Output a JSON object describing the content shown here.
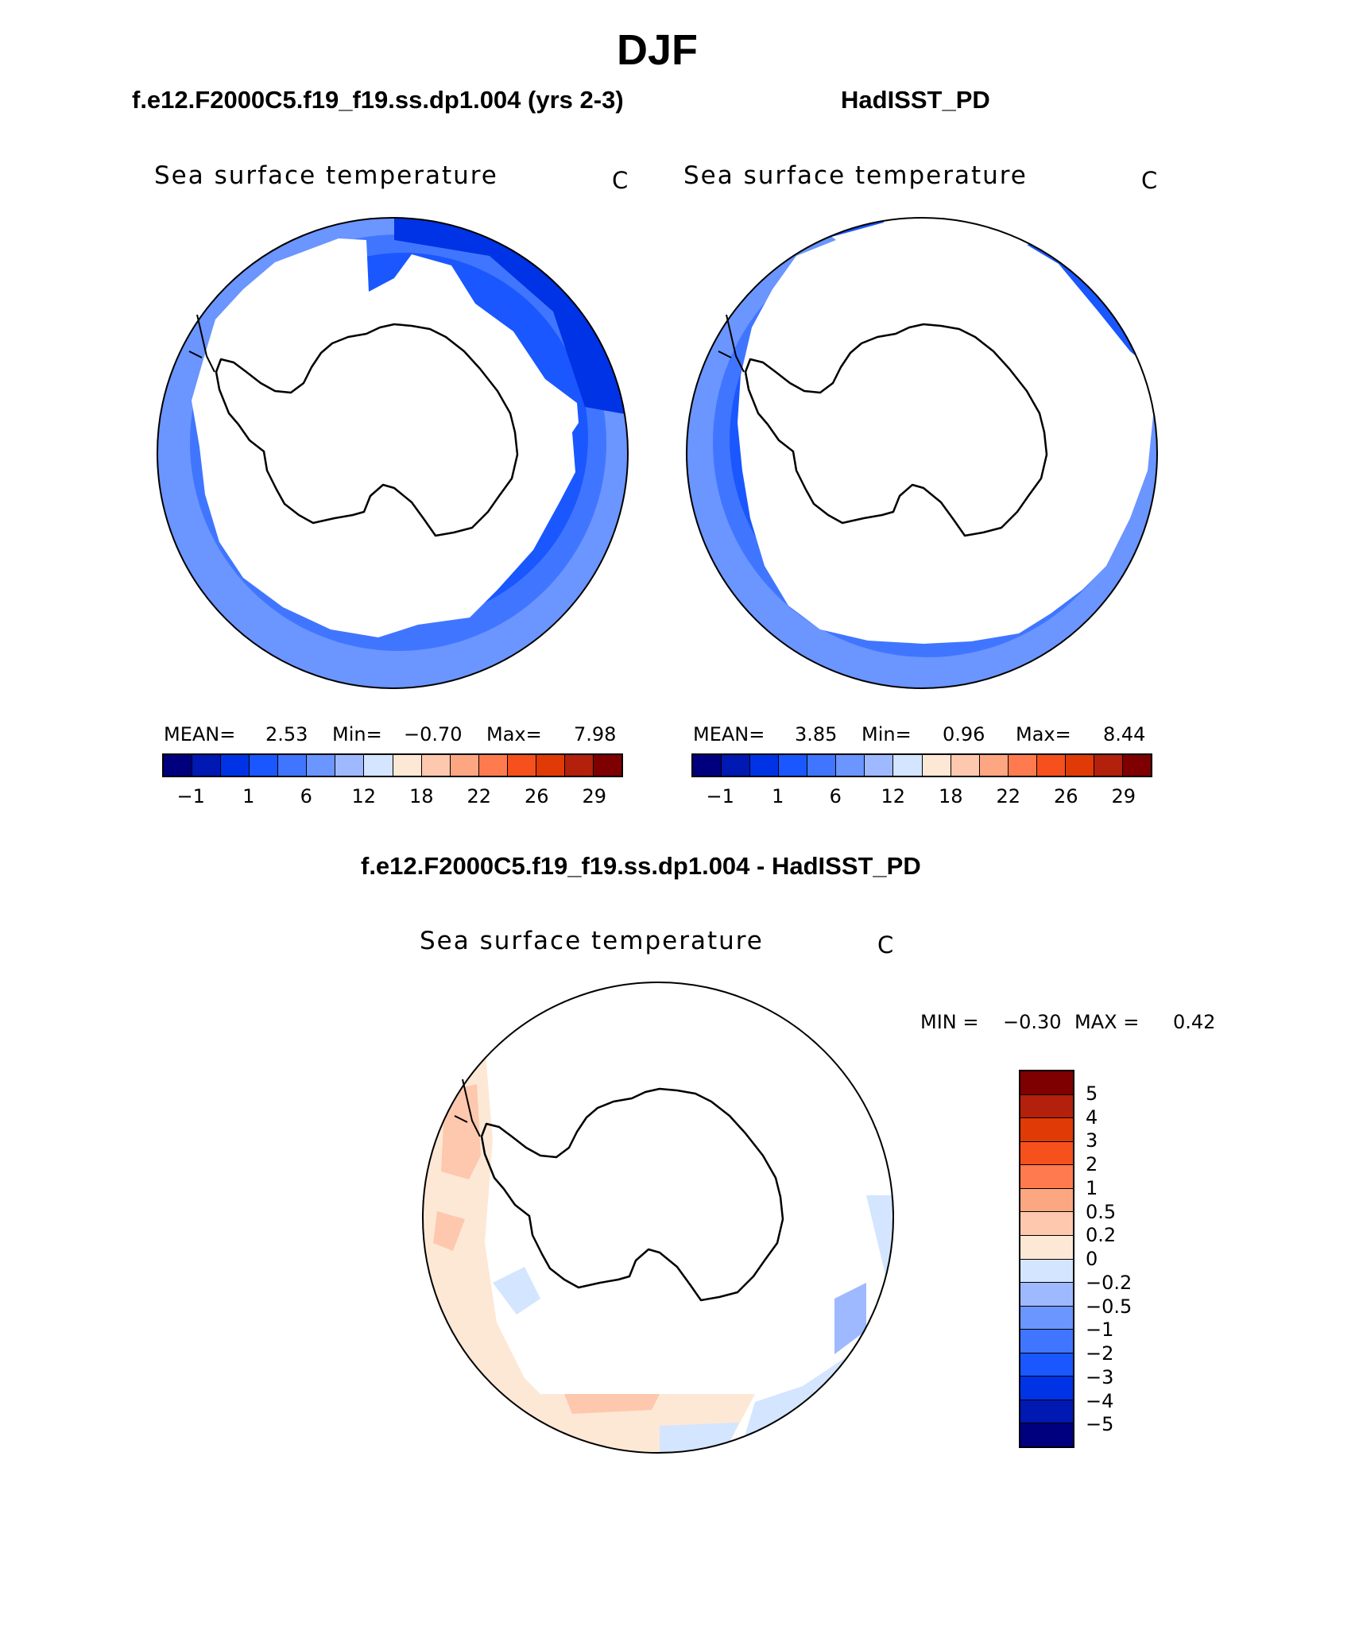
{
  "title": "DJF",
  "panels": [
    {
      "case_title": "f.e12.F2000C5.f19_f19.ss.dp1.004 (yrs 2-3)",
      "plot_label": "Sea surface temperature",
      "units": "C",
      "mean_label": "MEAN=",
      "mean_value": "2.53",
      "min_label": "Min=",
      "min_value": "−0.70",
      "max_label": "Max=",
      "max_value": "7.98"
    },
    {
      "case_title": "HadISST_PD",
      "plot_label": "Sea surface temperature",
      "units": "C",
      "mean_label": "MEAN=",
      "mean_value": "3.85",
      "min_label": "Min=",
      "min_value": "0.96",
      "max_label": "Max=",
      "max_value": "8.44"
    },
    {
      "case_title": "f.e12.F2000C5.f19_f19.ss.dp1.004 - HadISST_PD",
      "plot_label": "Sea surface temperature",
      "units": "C",
      "min_label": "MIN =",
      "min_value": "−0.30",
      "max_label": "MAX =",
      "max_value": "0.42"
    }
  ],
  "colorbar_main": {
    "colors": [
      "#00007f",
      "#0019b2",
      "#0033e5",
      "#1a57ff",
      "#4076ff",
      "#6b95ff",
      "#9eb9ff",
      "#d3e5ff",
      "#fde8d6",
      "#fdc8ad",
      "#fda682",
      "#ff7b4f",
      "#f6501d",
      "#e03a07",
      "#b3200c",
      "#7f0000"
    ],
    "tick_labels": [
      "−1",
      "1",
      "6",
      "12",
      "18",
      "22",
      "26",
      "29"
    ]
  },
  "colorbar_diff": {
    "colors_top_to_bottom": [
      "#7f0000",
      "#b3200c",
      "#e03a07",
      "#f6501d",
      "#ff7b4f",
      "#fda682",
      "#fdc8ad",
      "#fde8d6",
      "#d3e5ff",
      "#9eb9ff",
      "#6b95ff",
      "#4076ff",
      "#1a57ff",
      "#0033e5",
      "#0019b2",
      "#00007f"
    ],
    "tick_labels": [
      "5",
      "4",
      "3",
      "2",
      "1",
      "0.5",
      "0.2",
      "0",
      "−0.2",
      "−0.5",
      "−1",
      "−2",
      "−3",
      "−4",
      "−5"
    ]
  },
  "map_colors": {
    "ocean_outer": "#6b95ff",
    "ocean_mid": "#4076ff",
    "ocean_inner": "#1a57ff",
    "ocean_deep": "#0033e5",
    "diff_warm": "#fde8d6",
    "diff_warm2": "#fdc8ad",
    "diff_cool": "#d3e5ff",
    "diff_cool2": "#9eb9ff"
  }
}
